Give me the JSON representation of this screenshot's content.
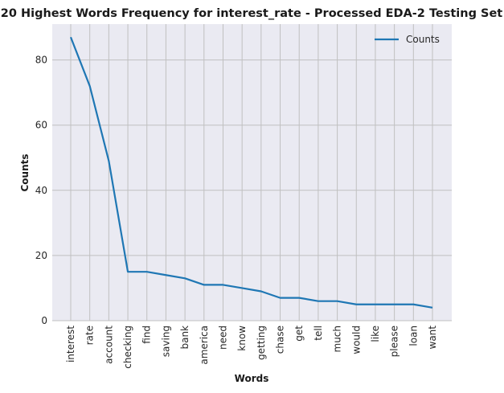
{
  "chart_data": {
    "type": "line",
    "title": "20 Highest Words Frequency for interest_rate - Processed EDA-2 Testing Set",
    "xlabel": "Words",
    "ylabel": "Counts",
    "categories": [
      "interest",
      "rate",
      "account",
      "checking",
      "find",
      "saving",
      "bank",
      "america",
      "need",
      "know",
      "getting",
      "chase",
      "get",
      "tell",
      "much",
      "would",
      "like",
      "please",
      "loan",
      "want"
    ],
    "series": [
      {
        "name": "Counts",
        "values": [
          87,
          72,
          49,
          15,
          15,
          14,
          13,
          11,
          11,
          10,
          9,
          7,
          7,
          6,
          6,
          5,
          5,
          5,
          5,
          4
        ]
      }
    ],
    "ylim": [
      0,
      91
    ],
    "yticks": [
      0,
      20,
      40,
      60,
      80
    ],
    "grid": true,
    "legend_position": "top-right",
    "colors": {
      "line": "#1f77b4",
      "background": "#eaeaf2",
      "grid": "#c0c0c0"
    }
  }
}
